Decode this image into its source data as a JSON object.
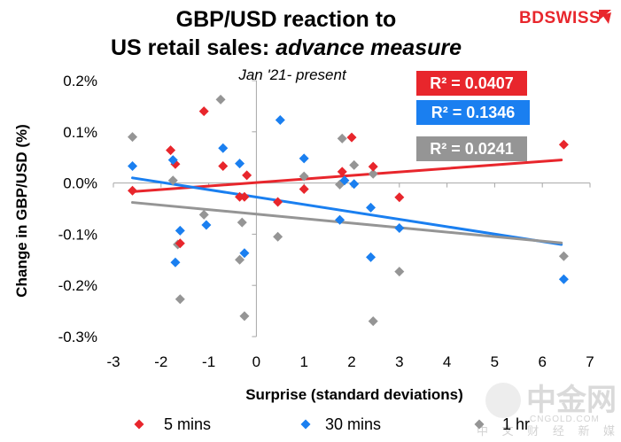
{
  "header": {
    "title_line1": "GBP/USD reaction to",
    "title_line2_normal": "US retail sales: ",
    "title_line2_italic": "advance measure",
    "subtitle": "Jan '21- present",
    "brand": "BDSWISS"
  },
  "watermark": {
    "big": "中金网",
    "small": "CNGOLD.COM",
    "cn": "中 文 财 经 新 媒 体"
  },
  "colors": {
    "five_mins": "#e8262c",
    "thirty_mins": "#1a7ff0",
    "one_hr": "#959595"
  },
  "chart_data": {
    "type": "scatter",
    "title": "GBP/USD reaction to US retail sales: advance measure",
    "subtitle": "Jan '21- present",
    "xlabel": "Surprise (standard deviations)",
    "ylabel": "Change in GBP/USD  (%)",
    "xlim": [
      -3,
      7
    ],
    "ylim": [
      -0.3,
      0.2
    ],
    "x_ticks": [
      -3,
      -2,
      -1,
      0,
      1,
      2,
      3,
      4,
      5,
      6,
      7
    ],
    "y_ticks": [
      0.2,
      0.1,
      0.0,
      -0.1,
      -0.2,
      -0.3
    ],
    "y_tick_labels": [
      "0.2%",
      "0.1%",
      "0.0%",
      "-0.1%",
      "-0.2%",
      "-0.3%"
    ],
    "grid": false,
    "legend_position": "bottom",
    "series": [
      {
        "name": "5 mins",
        "color": "#e8262c",
        "r2_label": "R² = 0.0407",
        "trend": [
          [
            -2.6,
            -0.017
          ],
          [
            6.4,
            0.045
          ]
        ],
        "points": [
          [
            -2.6,
            -0.015
          ],
          [
            -1.8,
            0.064
          ],
          [
            -1.7,
            0.037
          ],
          [
            -1.6,
            -0.118
          ],
          [
            -1.1,
            0.14
          ],
          [
            -0.7,
            0.033
          ],
          [
            -0.35,
            -0.027
          ],
          [
            -0.25,
            -0.027
          ],
          [
            -0.2,
            0.015
          ],
          [
            0.45,
            -0.037
          ],
          [
            1.0,
            -0.012
          ],
          [
            1.8,
            0.022
          ],
          [
            2.0,
            0.089
          ],
          [
            2.45,
            0.032
          ],
          [
            3.0,
            -0.028
          ],
          [
            6.45,
            0.075
          ]
        ]
      },
      {
        "name": "30 mins",
        "color": "#1a7ff0",
        "r2_label": "R² = 0.1346",
        "trend": [
          [
            -2.6,
            0.01
          ],
          [
            6.4,
            -0.12
          ]
        ],
        "points": [
          [
            -2.6,
            0.033
          ],
          [
            -1.75,
            0.045
          ],
          [
            -1.7,
            -0.155
          ],
          [
            -1.6,
            -0.093
          ],
          [
            -1.05,
            -0.082
          ],
          [
            -0.7,
            0.068
          ],
          [
            -0.35,
            0.038
          ],
          [
            -0.25,
            -0.137
          ],
          [
            0.5,
            0.123
          ],
          [
            1.0,
            0.048
          ],
          [
            1.75,
            -0.072
          ],
          [
            1.85,
            0.005
          ],
          [
            2.05,
            -0.002
          ],
          [
            2.4,
            -0.145
          ],
          [
            2.4,
            -0.048
          ],
          [
            3.0,
            -0.088
          ],
          [
            6.45,
            -0.188
          ]
        ]
      },
      {
        "name": "1 hr",
        "color": "#959595",
        "r2_label": "R² = 0.0241",
        "trend": [
          [
            -2.6,
            -0.038
          ],
          [
            6.4,
            -0.117
          ]
        ],
        "points": [
          [
            -2.6,
            0.09
          ],
          [
            -1.75,
            0.005
          ],
          [
            -1.65,
            -0.12
          ],
          [
            -1.6,
            -0.227
          ],
          [
            -1.1,
            -0.062
          ],
          [
            -0.75,
            0.163
          ],
          [
            -0.35,
            -0.15
          ],
          [
            -0.3,
            -0.077
          ],
          [
            -0.25,
            -0.26
          ],
          [
            0.45,
            -0.105
          ],
          [
            1.0,
            0.013
          ],
          [
            1.8,
            0.087
          ],
          [
            1.75,
            -0.003
          ],
          [
            2.05,
            0.035
          ],
          [
            2.45,
            -0.27
          ],
          [
            2.45,
            0.018
          ],
          [
            3.0,
            -0.173
          ],
          [
            6.45,
            -0.143
          ]
        ]
      }
    ]
  }
}
